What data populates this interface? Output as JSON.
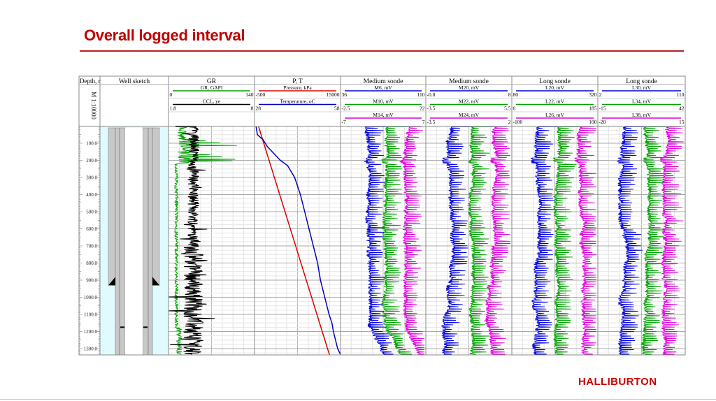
{
  "slide": {
    "title": "Overall logged interval",
    "logo": "HALLIBURTON",
    "title_color": "#c00000"
  },
  "chart_data": {
    "type": "line",
    "title": "Overall logged interval",
    "depth_axis": {
      "label": "Depth, m",
      "label_visible": "Depth, r",
      "scale": "M 1:10000",
      "ticks": [
        "100.0",
        "200.0",
        "300.0",
        "400.0",
        "500.0",
        "600.0",
        "700.0",
        "800.0",
        "900.0",
        "1000.0",
        "1100.0",
        "1200.0",
        "1300.0"
      ],
      "tick_values": [
        100,
        200,
        300,
        400,
        500,
        600,
        700,
        800,
        900,
        1000,
        1100,
        1200,
        1300
      ],
      "range": [
        0,
        1335
      ]
    },
    "well_sketch": {
      "label": "Well sketch",
      "casing_shoe_depth": 930,
      "marker_depth": 1175
    },
    "tracks": [
      {
        "title": "GR",
        "curves": [
          {
            "name": "GR, GAPI",
            "min": "0",
            "max": "140",
            "color": "#00a000",
            "lo": 0,
            "hi": 140
          },
          {
            "name": "CCL, ye",
            "min": "1.8",
            "max": "8",
            "color": "#000000",
            "lo": 1.8,
            "hi": 8
          }
        ]
      },
      {
        "title": "P, T",
        "curves": [
          {
            "name": "Pressure, kPa",
            "min": "-500",
            "max": "15000",
            "color": "#e00000",
            "lo": -500,
            "hi": 15000
          },
          {
            "name": "Temperature, oC",
            "min": "28",
            "max": "58",
            "color": "#0000c0",
            "lo": 28,
            "hi": 58
          }
        ]
      },
      {
        "title": "Medium sonde",
        "curves": [
          {
            "name": "M6, mV",
            "min": "36",
            "max": "110",
            "color": "#0000dd"
          },
          {
            "name": "M10, mV",
            "min": "-2.5",
            "max": "22",
            "color": "#00a000"
          },
          {
            "name": "M14, mV",
            "min": "-7",
            "max": "7",
            "color": "#dd00dd"
          }
        ]
      },
      {
        "title": "Medium sonde",
        "curves": [
          {
            "name": "M20, mV",
            "min": "-0.8",
            "max": "8",
            "color": "#0000dd"
          },
          {
            "name": "M22, mV",
            "min": "-3.5",
            "max": "5.5",
            "color": "#00a000"
          },
          {
            "name": "M24, mV",
            "min": "-3.5",
            "max": "2",
            "color": "#dd00dd"
          }
        ]
      },
      {
        "title": "Long sonde",
        "curves": [
          {
            "name": "L20, mV",
            "min": "80",
            "max": "320",
            "color": "#0000dd"
          },
          {
            "name": "L22, mV",
            "min": "0",
            "max": "185",
            "color": "#00a000"
          },
          {
            "name": "L26, mV",
            "min": "-100",
            "max": "100",
            "color": "#dd00dd"
          }
        ]
      },
      {
        "title": "Long sonde",
        "curves": [
          {
            "name": "L30, mV",
            "min": "2",
            "max": "110",
            "color": "#0000dd"
          },
          {
            "name": "L34, mV",
            "min": "-15",
            "max": "42",
            "color": "#00a000"
          },
          {
            "name": "L38, mV",
            "min": "-20",
            "max": "15",
            "color": "#dd00dd"
          }
        ]
      }
    ],
    "pt_profile": {
      "pressure_points": [
        [
          0,
          200
        ],
        [
          1335,
          13000
        ]
      ],
      "temperature_points": [
        [
          0,
          28.5
        ],
        [
          50,
          29
        ],
        [
          80,
          31
        ],
        [
          120,
          32.5
        ],
        [
          200,
          37
        ],
        [
          230,
          39.5
        ],
        [
          300,
          42
        ],
        [
          400,
          44
        ],
        [
          500,
          45.5
        ],
        [
          600,
          47
        ],
        [
          700,
          48.5
        ],
        [
          800,
          50
        ],
        [
          900,
          51
        ],
        [
          1000,
          52.5
        ],
        [
          1100,
          54
        ],
        [
          1150,
          55
        ],
        [
          1200,
          55.5
        ],
        [
          1300,
          57
        ],
        [
          1335,
          58
        ]
      ]
    },
    "grid": true
  }
}
